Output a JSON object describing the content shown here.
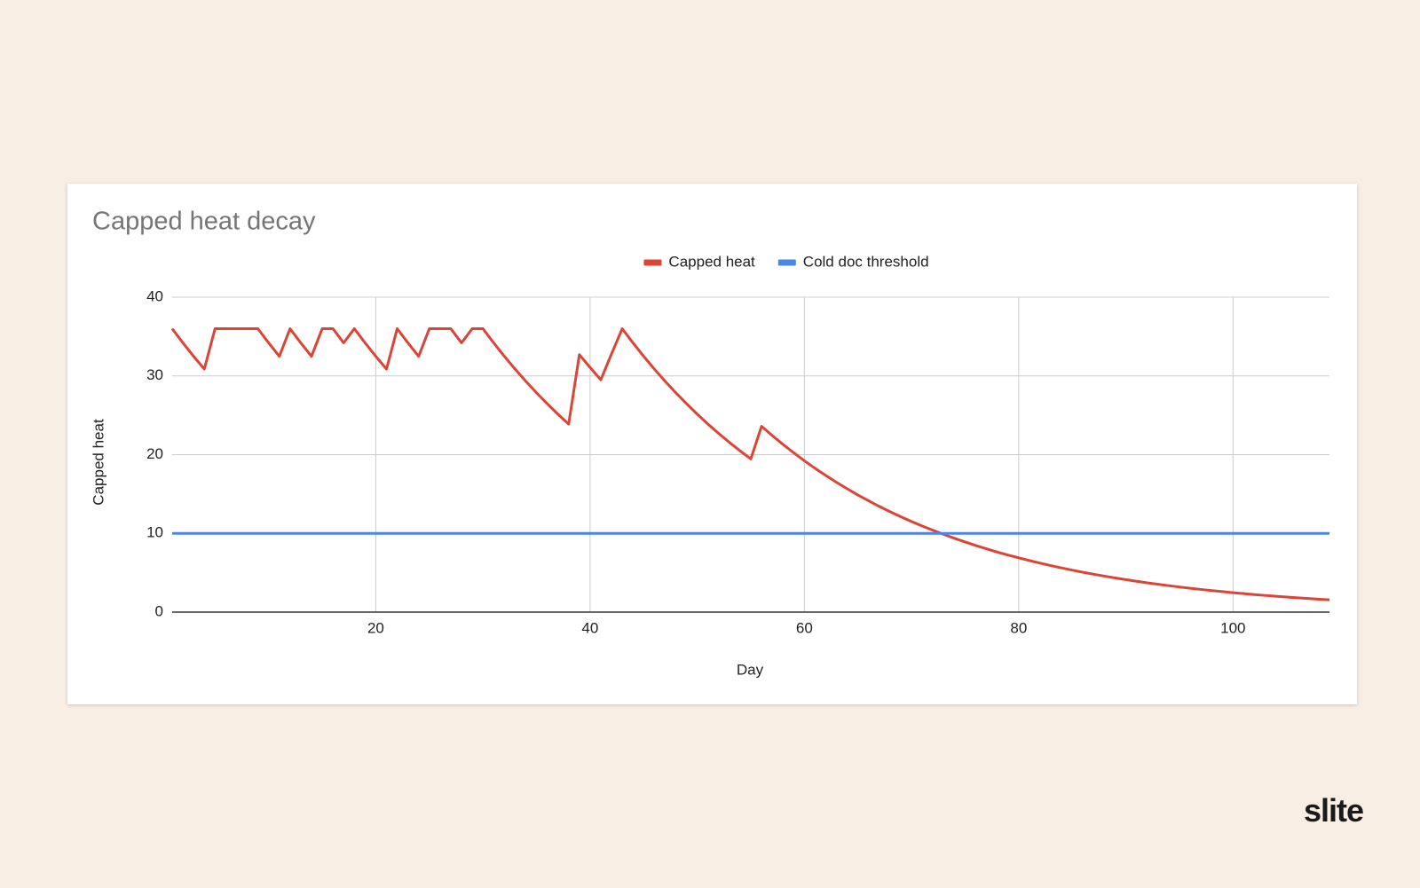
{
  "chart_data": {
    "type": "line",
    "title": "Capped heat decay",
    "x_label": "Day",
    "y_label": "Capped heat",
    "xlim": [
      1,
      109
    ],
    "xticks": [
      20,
      40,
      60,
      80,
      100
    ],
    "ylim": [
      0,
      40
    ],
    "yticks": [
      0,
      10,
      20,
      30,
      40
    ],
    "grid": true,
    "legend": "top",
    "series": [
      {
        "name": "Capped heat",
        "color": "#db4437",
        "x": [
          1,
          2,
          3,
          4,
          5,
          6,
          7,
          8,
          9,
          10,
          11,
          12,
          13,
          14,
          15,
          16,
          17,
          18,
          19,
          20,
          21,
          22,
          23,
          24,
          25,
          26,
          27,
          28,
          29,
          30,
          31,
          32,
          33,
          34,
          35,
          36,
          37,
          38,
          39,
          40,
          41,
          42,
          43,
          44,
          45,
          46,
          47,
          48,
          49,
          50,
          51,
          52,
          53,
          54,
          55,
          56,
          57,
          58,
          59,
          60,
          61,
          62,
          63,
          64,
          65,
          66,
          67,
          68,
          69,
          70,
          71,
          72,
          73,
          74,
          75,
          76,
          77,
          78,
          79,
          80,
          81,
          82,
          83,
          84,
          85,
          86,
          87,
          88,
          89,
          90,
          91,
          92,
          93,
          94,
          95,
          96,
          97,
          98,
          99,
          100,
          101,
          102,
          103,
          104,
          105,
          106,
          107,
          108,
          109
        ],
        "values": [
          36,
          34.2,
          32.49,
          30.87,
          36,
          36,
          36,
          36,
          36,
          34.2,
          32.49,
          36,
          34.2,
          32.49,
          36,
          36,
          34.2,
          36,
          34.2,
          32.49,
          30.87,
          36,
          34.2,
          32.49,
          36,
          36,
          36,
          34.2,
          36,
          36,
          34.2,
          32.49,
          30.87,
          29.32,
          27.86,
          26.47,
          25.14,
          23.88,
          32.7,
          31.07,
          29.51,
          32.8,
          36,
          34.2,
          32.49,
          30.87,
          29.32,
          27.86,
          26.47,
          25.14,
          23.88,
          22.69,
          21.56,
          20.48,
          19.46,
          23.6,
          22.42,
          21.3,
          20.24,
          19.22,
          18.26,
          17.35,
          16.48,
          15.66,
          14.87,
          14.13,
          13.42,
          12.75,
          12.11,
          11.51,
          10.93,
          10.39,
          9.87,
          9.37,
          8.91,
          8.46,
          8.04,
          7.63,
          7.25,
          6.89,
          6.55,
          6.22,
          5.91,
          5.61,
          5.33,
          5.06,
          4.81,
          4.57,
          4.34,
          4.13,
          3.92,
          3.72,
          3.54,
          3.36,
          3.19,
          3.03,
          2.88,
          2.74,
          2.6,
          2.47,
          2.35,
          2.23,
          2.12,
          2.01,
          1.91,
          1.82,
          1.73,
          1.64,
          1.56
        ]
      },
      {
        "name": "Cold doc threshold",
        "color": "#4a86e8",
        "x": [
          1,
          109
        ],
        "values": [
          10,
          10
        ]
      }
    ]
  },
  "footer": {
    "logo": "slite"
  }
}
